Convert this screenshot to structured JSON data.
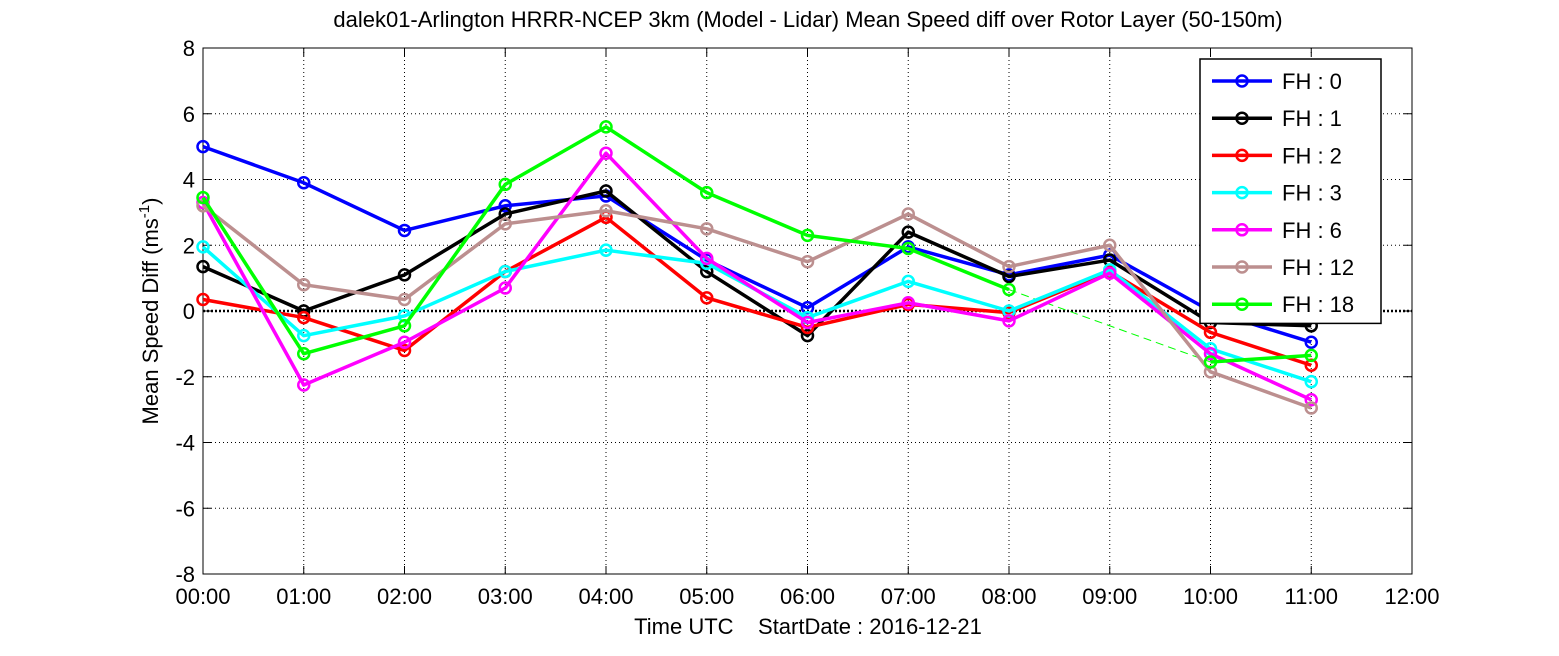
{
  "chart_data": {
    "type": "line",
    "title": "dalek01-Arlington HRRR-NCEP 3km (Model - Lidar) Mean Speed diff over Rotor Layer (50-150m)",
    "xlabel": "Time UTC    StartDate : 2016-12-21",
    "ylabel_main": "Mean Speed Diff (ms",
    "ylabel_sup": "-1",
    "ylabel_end": ")",
    "x_ticks": [
      "00:00",
      "01:00",
      "02:00",
      "03:00",
      "04:00",
      "05:00",
      "06:00",
      "07:00",
      "08:00",
      "09:00",
      "10:00",
      "11:00",
      "12:00"
    ],
    "y_ticks": [
      "8",
      "6",
      "4",
      "2",
      "0",
      "-2",
      "-4",
      "-6",
      "-8"
    ],
    "xlim": [
      0,
      12
    ],
    "ylim": [
      -8,
      8
    ],
    "grid": true,
    "legend_position": "top-right",
    "x": [
      0,
      1,
      2,
      3,
      4,
      5,
      6,
      7,
      8,
      9,
      10,
      11
    ],
    "series": [
      {
        "name": "FH : 0",
        "color": "#0000ff",
        "values": [
          5.0,
          3.9,
          2.45,
          3.2,
          3.5,
          1.55,
          0.1,
          1.95,
          1.1,
          1.7,
          0.0,
          -0.95
        ]
      },
      {
        "name": "FH : 1",
        "color": "#000000",
        "values": [
          1.35,
          0.0,
          1.1,
          2.95,
          3.65,
          1.2,
          -0.75,
          2.4,
          1.05,
          1.55,
          -0.35,
          -0.45
        ]
      },
      {
        "name": "FH : 2",
        "color": "#ff0000",
        "values": [
          0.35,
          -0.2,
          -1.2,
          1.2,
          2.85,
          0.4,
          -0.5,
          0.2,
          -0.05,
          1.2,
          -0.65,
          -1.65
        ]
      },
      {
        "name": "FH : 3",
        "color": "#00ffff",
        "values": [
          1.95,
          -0.75,
          -0.15,
          1.2,
          1.85,
          1.45,
          -0.2,
          0.9,
          0.0,
          1.25,
          -1.15,
          -2.15
        ]
      },
      {
        "name": "FH : 6",
        "color": "#ff00ff",
        "values": [
          3.3,
          -2.25,
          -0.95,
          0.7,
          4.8,
          1.6,
          -0.35,
          0.25,
          -0.3,
          1.15,
          -1.3,
          -2.7
        ]
      },
      {
        "name": "FH : 12",
        "color": "#bc8f8f",
        "values": [
          3.2,
          0.8,
          0.35,
          2.65,
          3.05,
          2.5,
          1.5,
          2.95,
          1.35,
          2.0,
          -1.85,
          -2.95
        ]
      },
      {
        "name": "FH : 18",
        "color": "#00ff00",
        "values": [
          3.45,
          -1.3,
          -0.45,
          3.85,
          5.6,
          3.6,
          2.3,
          1.9,
          0.65,
          null,
          -1.55,
          -1.35
        ]
      }
    ],
    "dashed_segments": [
      {
        "series": "FH : 18",
        "from": [
          8,
          0.65
        ],
        "to": [
          10,
          -1.55
        ]
      }
    ]
  }
}
